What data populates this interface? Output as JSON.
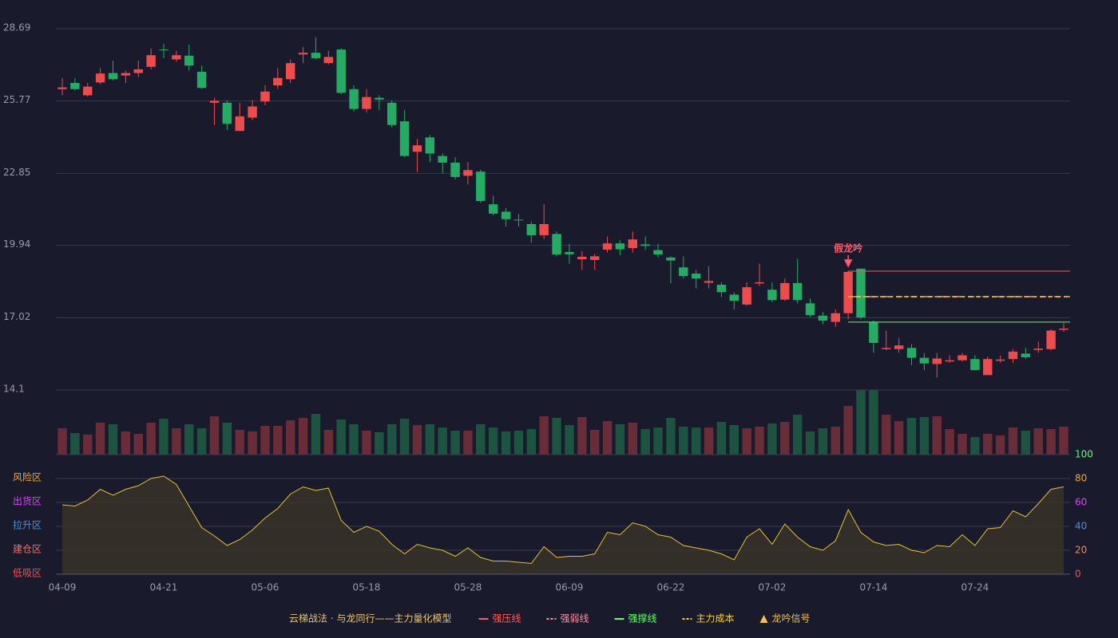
{
  "chart_data": [
    {
      "type": "candlestick",
      "ylim": [
        14.1,
        28.69
      ],
      "yticks": [
        14.1,
        17.02,
        19.94,
        22.85,
        25.77,
        28.69
      ],
      "grid": true,
      "up_color": "#ef4b4b",
      "down_color": "#22ad63",
      "volume_up_color": "#6a2c36",
      "volume_down_color": "#1d5440",
      "open": [
        26.25,
        26.5,
        26.0,
        26.52,
        26.9,
        26.8,
        26.9,
        27.15,
        27.85,
        27.45,
        27.6,
        26.95,
        25.7,
        25.7,
        24.56,
        25.1,
        25.75,
        26.4,
        26.65,
        27.65,
        27.72,
        27.3,
        27.85,
        26.25,
        25.45,
        25.9,
        25.7,
        24.95,
        23.72,
        24.3,
        23.55,
        23.28,
        22.75,
        22.92,
        21.6,
        21.3,
        20.98,
        20.8,
        20.35,
        20.4,
        19.67,
        19.38,
        19.35,
        19.77,
        20.02,
        19.83,
        19.98,
        19.75,
        19.45,
        19.05,
        18.8,
        18.43,
        18.35,
        17.95,
        17.55,
        18.4,
        18.15,
        17.75,
        18.42,
        17.6,
        17.1,
        16.85,
        17.2,
        19.0,
        16.83,
        15.75,
        15.75,
        15.8,
        15.4,
        15.15,
        15.25,
        15.3,
        15.35,
        14.7,
        15.28,
        15.35,
        15.57,
        15.72,
        15.75,
        16.53
      ],
      "close": [
        26.32,
        26.25,
        26.35,
        26.88,
        26.65,
        26.9,
        27.05,
        27.62,
        27.82,
        27.62,
        27.2,
        26.3,
        25.78,
        24.85,
        25.15,
        25.55,
        26.15,
        26.7,
        27.3,
        27.72,
        27.5,
        27.55,
        26.1,
        25.45,
        25.93,
        25.83,
        24.8,
        23.55,
        23.98,
        23.65,
        23.28,
        22.7,
        22.98,
        21.73,
        21.22,
        21.0,
        20.95,
        20.35,
        20.8,
        19.57,
        19.58,
        19.48,
        19.5,
        20.02,
        19.78,
        20.18,
        19.92,
        19.57,
        19.33,
        18.7,
        18.6,
        18.5,
        18.05,
        17.7,
        18.25,
        18.45,
        17.73,
        18.42,
        17.73,
        17.12,
        16.9,
        17.2,
        18.87,
        17.03,
        16.0,
        15.8,
        15.9,
        15.4,
        15.17,
        15.37,
        15.3,
        15.5,
        14.9,
        15.35,
        15.33,
        15.65,
        15.42,
        15.77,
        16.5,
        16.58
      ],
      "high": [
        26.7,
        26.7,
        26.5,
        27.1,
        27.4,
        27.0,
        27.4,
        27.9,
        28.08,
        27.8,
        28.05,
        27.2,
        25.9,
        25.8,
        25.7,
        25.8,
        26.4,
        27.1,
        27.45,
        27.95,
        28.35,
        27.8,
        27.9,
        26.4,
        26.25,
        26.0,
        25.8,
        25.4,
        24.25,
        24.4,
        23.65,
        23.5,
        23.3,
        23.0,
        21.95,
        21.45,
        21.2,
        20.9,
        21.6,
        20.5,
        20.0,
        19.7,
        19.6,
        20.3,
        20.15,
        20.5,
        20.3,
        20.0,
        19.5,
        19.5,
        18.95,
        19.1,
        18.45,
        18.05,
        18.45,
        19.2,
        18.45,
        18.6,
        19.4,
        17.8,
        17.25,
        17.35,
        18.9,
        19.0,
        16.9,
        16.5,
        16.2,
        15.95,
        15.6,
        15.6,
        15.5,
        15.6,
        15.5,
        15.45,
        15.5,
        15.75,
        15.8,
        16.05,
        16.55,
        16.8
      ],
      "low": [
        26.0,
        26.2,
        25.95,
        26.45,
        26.6,
        26.5,
        26.75,
        27.05,
        27.5,
        27.35,
        27.0,
        26.25,
        24.8,
        24.6,
        24.56,
        25.0,
        25.6,
        26.25,
        26.5,
        27.3,
        27.45,
        27.25,
        26.05,
        25.35,
        25.3,
        25.4,
        24.7,
        23.5,
        22.9,
        23.3,
        22.85,
        22.6,
        22.4,
        21.65,
        21.15,
        20.7,
        20.7,
        20.05,
        20.2,
        19.5,
        19.2,
        18.95,
        18.95,
        19.65,
        19.55,
        19.65,
        19.75,
        19.45,
        18.4,
        18.6,
        18.2,
        18.2,
        17.85,
        17.35,
        17.5,
        18.3,
        17.65,
        17.7,
        17.6,
        17.05,
        16.75,
        16.65,
        16.95,
        16.95,
        15.6,
        15.7,
        15.6,
        15.1,
        14.9,
        14.6,
        15.2,
        15.25,
        14.9,
        14.7,
        15.2,
        15.2,
        15.35,
        15.6,
        15.7,
        16.45
      ],
      "volume": [
        33,
        27,
        25,
        40,
        38,
        29,
        26,
        40,
        45,
        33,
        38,
        33,
        48,
        40,
        31,
        29,
        36,
        36,
        43,
        46,
        51,
        31,
        44,
        38,
        30,
        28,
        38,
        45,
        37,
        38,
        34,
        30,
        30,
        38,
        34,
        29,
        30,
        32,
        48,
        46,
        37,
        47,
        31,
        42,
        38,
        40,
        32,
        34,
        46,
        35,
        34,
        34,
        41,
        37,
        33,
        35,
        39,
        41,
        50,
        29,
        33,
        35,
        61,
        90,
        90,
        50,
        42,
        46,
        47,
        48,
        32,
        26,
        22,
        26,
        24,
        34,
        30,
        33,
        32,
        35
      ],
      "levels": [
        {
          "name": "强压线",
          "value": 18.9,
          "color": "#ff5a5a",
          "style": "solid"
        },
        {
          "name": "强弱线",
          "value": 17.87,
          "color": "#ff8fa3",
          "style": "dash"
        },
        {
          "name": "强撑线",
          "value": 16.84,
          "color": "#5dff6b",
          "style": "solid"
        },
        {
          "name": "主力成本",
          "value": 17.87,
          "color": "#ffd400",
          "style": "dash"
        }
      ],
      "annotation": {
        "text": "假龙吟",
        "index": 62,
        "color": "#ff5a6a"
      },
      "legend_title": "云梯战法 · 与龙同行——主力量化模型",
      "signal_legend": {
        "name": "龙吟信号",
        "color": "#f5c242"
      }
    },
    {
      "type": "area",
      "categories": [
        "04-09",
        null,
        null,
        null,
        null,
        null,
        null,
        null,
        "04-21",
        null,
        null,
        null,
        null,
        null,
        null,
        null,
        "05-06",
        null,
        null,
        null,
        null,
        null,
        null,
        null,
        "05-18",
        null,
        null,
        null,
        null,
        null,
        null,
        null,
        "05-28",
        null,
        null,
        null,
        null,
        null,
        null,
        null,
        "06-09",
        null,
        null,
        null,
        null,
        null,
        null,
        null,
        "06-22",
        null,
        null,
        null,
        null,
        null,
        null,
        null,
        "07-02",
        null,
        null,
        null,
        null,
        null,
        null,
        null,
        "07-14",
        null,
        null,
        null,
        null,
        null,
        null,
        null,
        "07-24",
        null,
        null,
        null,
        null,
        null,
        null,
        null
      ],
      "values": [
        58,
        57,
        62,
        71,
        66,
        71,
        74,
        80,
        82,
        75,
        57,
        39,
        32,
        24,
        29,
        37,
        47,
        55,
        67,
        73,
        70,
        72,
        45,
        35,
        40,
        36,
        25,
        17,
        25,
        22,
        20,
        15,
        22,
        14,
        11,
        11,
        10,
        9,
        23,
        14,
        15,
        15,
        17,
        35,
        33,
        43,
        40,
        33,
        31,
        24,
        22,
        20,
        17,
        12,
        31,
        38,
        25,
        42,
        31,
        23,
        20,
        28,
        54,
        35,
        27,
        24,
        25,
        20,
        18,
        24,
        23,
        33,
        24,
        38,
        39,
        53,
        48,
        59,
        71,
        73
      ],
      "color": "#e6c229",
      "ylim": [
        0,
        100
      ],
      "yticks": [
        0,
        20,
        40,
        60,
        80,
        100
      ],
      "ytick_colors": [
        "#ff4d4f",
        "#ff8a3d",
        "#4a90e2",
        "#e040fb",
        "#f5a623",
        "#5dff6b"
      ],
      "zones": [
        {
          "value": 80,
          "label": "风险区",
          "color": "#f5a623"
        },
        {
          "value": 60,
          "label": "出货区",
          "color": "#e040fb"
        },
        {
          "value": 40,
          "label": "拉升区",
          "color": "#4a90e2"
        },
        {
          "value": 20,
          "label": "建仓区",
          "color": "#ff6b5a"
        },
        {
          "value": 0,
          "label": "低吸区",
          "color": "#ff4d4f"
        }
      ]
    }
  ]
}
